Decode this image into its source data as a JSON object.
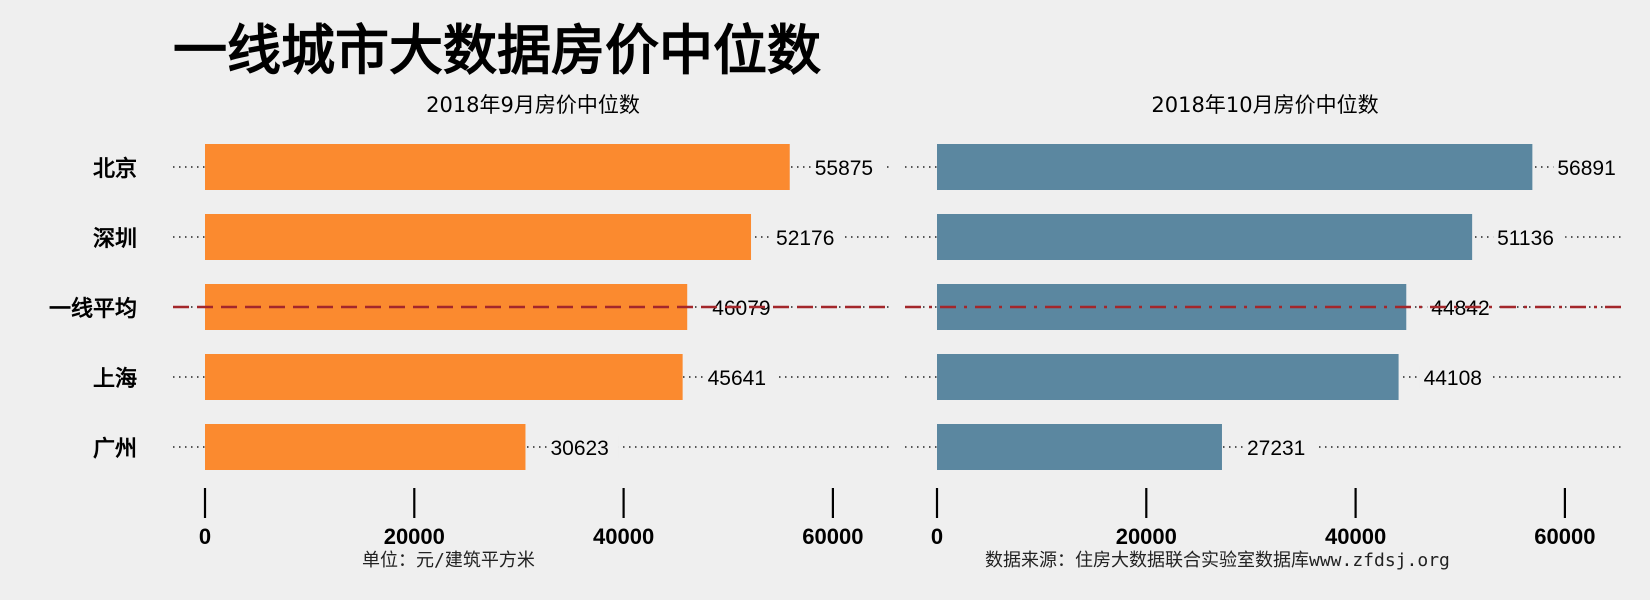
{
  "title": "一线城市大数据房价中位数",
  "footer": {
    "unit": "单位：元/建筑平方米",
    "source": "数据来源：住房大数据联合实验室数据库www.zfdsj.org"
  },
  "colors": {
    "background": "#efefef",
    "left_bars": "#fb8a2f",
    "right_bars": "#5b87a0",
    "average_line": "#a3272b",
    "dots": "#222222"
  },
  "chart_data": [
    {
      "type": "bar",
      "orientation": "horizontal",
      "title": "2018年9月房价中位数",
      "categories": [
        "北京",
        "深圳",
        "一线平均",
        "上海",
        "广州"
      ],
      "values": [
        55875,
        52176,
        46079,
        45641,
        30623
      ],
      "xlim": [
        0,
        65000
      ],
      "xticks": [
        0,
        20000,
        40000,
        60000
      ],
      "average_category": "一线平均",
      "average_value": 46079
    },
    {
      "type": "bar",
      "orientation": "horizontal",
      "title": "2018年10月房价中位数",
      "categories": [
        "北京",
        "深圳",
        "一线平均",
        "上海",
        "广州"
      ],
      "values": [
        56891,
        51136,
        44842,
        44108,
        27231
      ],
      "xlim": [
        0,
        65000
      ],
      "xticks": [
        0,
        20000,
        40000,
        60000
      ],
      "average_category": "一线平均",
      "average_value": 44842
    }
  ]
}
